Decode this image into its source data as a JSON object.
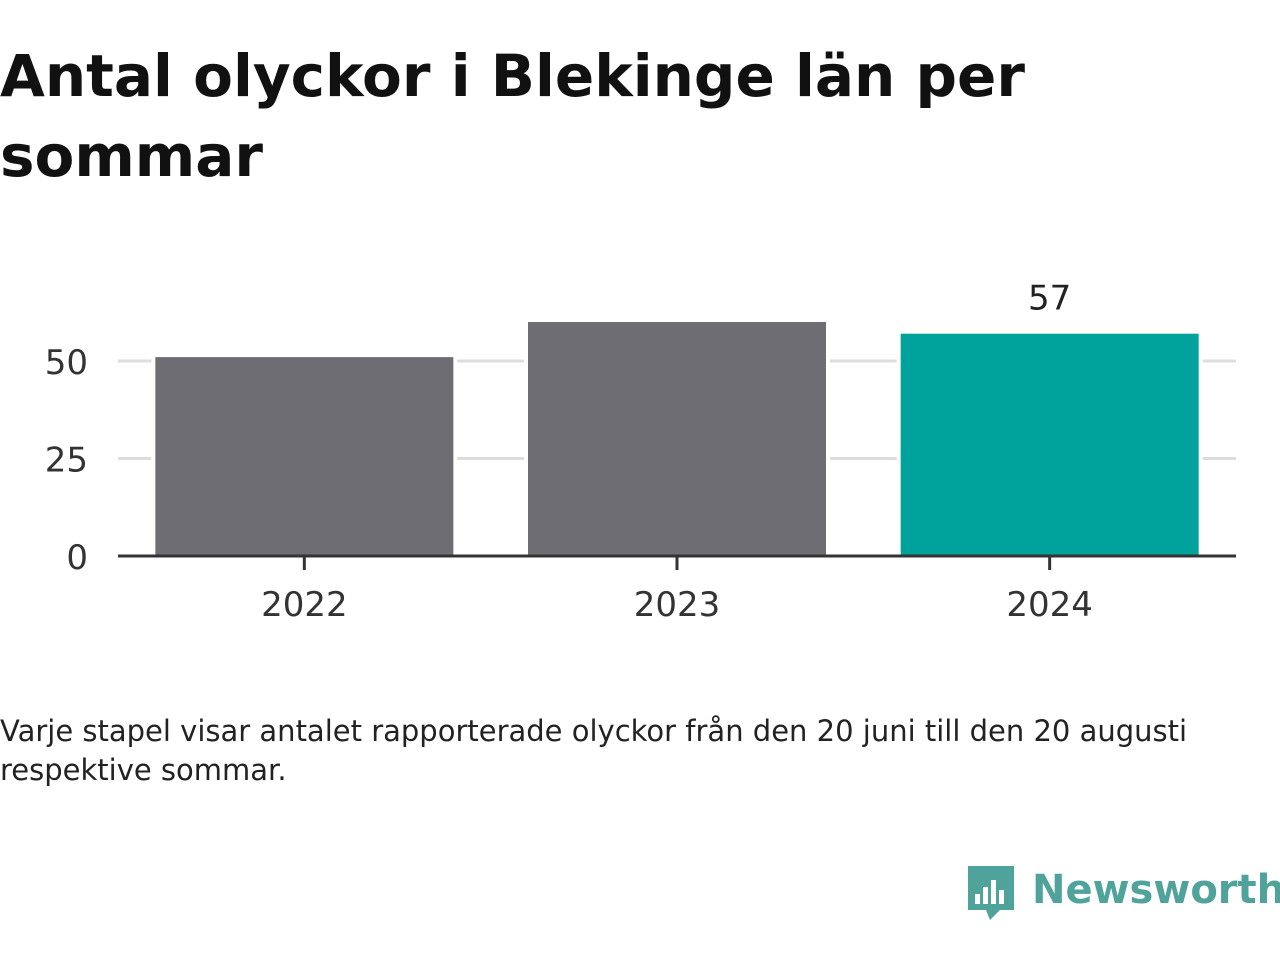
{
  "title": "Antal olyckor i Blekinge län per sommar",
  "note": "Varje stapel visar antalet rapporterade olyckor från den 20 juni till den 20 augusti respektive sommar.",
  "brand": {
    "name": "Newsworthy",
    "color": "#4fa39a"
  },
  "chart_data": {
    "type": "bar",
    "title": "Antal olyckor i Blekinge län per sommar",
    "xlabel": "",
    "ylabel": "",
    "categories": [
      "2022",
      "2023",
      "2024"
    ],
    "values": [
      51,
      60,
      57
    ],
    "data_labels": [
      "",
      "",
      "57"
    ],
    "ylim": [
      0,
      60
    ],
    "yticks": [
      0,
      25,
      50
    ],
    "grid": true,
    "legend": "none",
    "colors": [
      "#6e6d73",
      "#6e6d73",
      "#00a39b"
    ],
    "gridline_color": "#dddddd",
    "axis_color": "#333333"
  }
}
